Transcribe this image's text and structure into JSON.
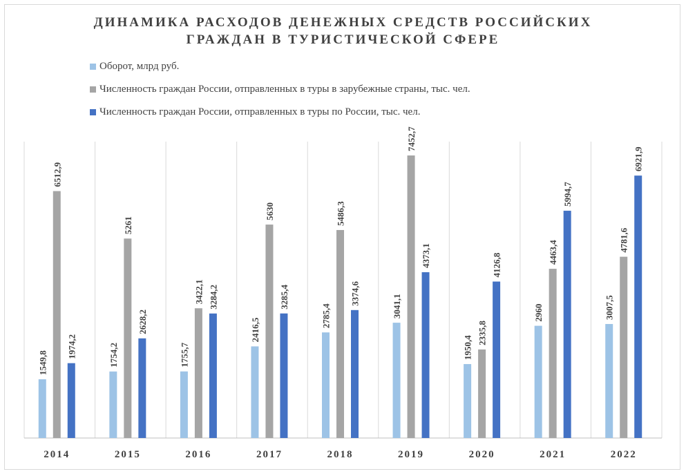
{
  "chart_data": {
    "type": "bar",
    "title_lines": [
      "ДИНАМИКА РАСХОДОВ ДЕНЕЖНЫХ СРЕДСТВ РОССИЙСКИХ",
      "ГРАЖДАН В ТУРИСТИЧЕСКОЙ СФЕРЕ"
    ],
    "categories": [
      "2014",
      "2015",
      "2016",
      "2017",
      "2018",
      "2019",
      "2020",
      "2021",
      "2022"
    ],
    "series": [
      {
        "name": "Оборот, млрд руб.",
        "color": "#9dc3e6",
        "values": [
          1549.8,
          1754.2,
          1755.7,
          2416.5,
          2785.4,
          3041.1,
          1950.4,
          2960,
          3007.5
        ],
        "labels": [
          "1549,8",
          "1754,2",
          "1755,7",
          "2416,5",
          "2785,4",
          "3041,1",
          "1950,4",
          "2960",
          "3007,5"
        ]
      },
      {
        "name": "Численность граждан России, отправленных в туры в зарубежные страны, тыс. чел.",
        "color": "#a5a5a5",
        "values": [
          6512.9,
          5261,
          3422.1,
          5630,
          5486.3,
          7452.7,
          2335.8,
          4463.4,
          4781.6
        ],
        "labels": [
          "6512,9",
          "5261",
          "3422,1",
          "5630",
          "5486,3",
          "7452,7",
          "2335,8",
          "4463,4",
          "4781,6"
        ]
      },
      {
        "name": "Численность граждан России, отправленных в туры  по России, тыс. чел.",
        "color": "#4472c4",
        "values": [
          1974.2,
          2628.2,
          3284.2,
          3285.4,
          3374.6,
          4373.1,
          4126.8,
          5994.7,
          6921.9
        ],
        "labels": [
          "1974,2",
          "2628,2",
          "3284,2",
          "3285,4",
          "3374,6",
          "4373,1",
          "4126,8",
          "5994,7",
          "6921,9"
        ]
      }
    ],
    "ylim": [
      0,
      8000
    ],
    "grid": "vertical category separators",
    "legend_position": "top-left"
  }
}
